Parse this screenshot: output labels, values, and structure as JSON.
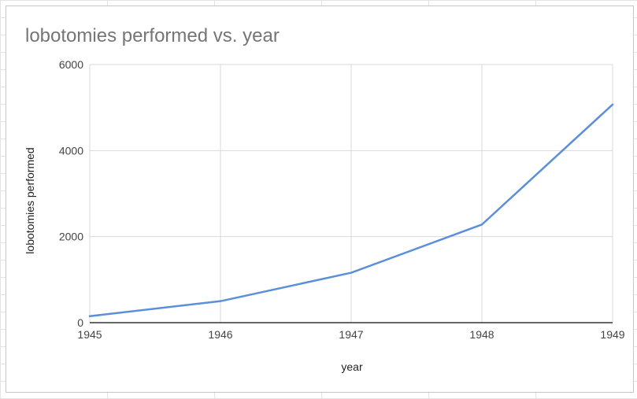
{
  "chart_data": {
    "type": "line",
    "title": "lobotomies performed vs. year",
    "xlabel": "year",
    "ylabel": "lobotomies performed",
    "x": [
      1945,
      1946,
      1947,
      1948,
      1949
    ],
    "x_tick_labels": [
      "1945",
      "1946",
      "1947",
      "1948",
      "1949"
    ],
    "y_ticks": [
      0,
      2000,
      4000,
      6000
    ],
    "y_tick_labels": [
      "0",
      "2000",
      "4000",
      "6000"
    ],
    "ylim": [
      0,
      6000
    ],
    "xlim": [
      1945,
      1949
    ],
    "series": [
      {
        "values": [
          150,
          500,
          1160,
          2280,
          5070
        ],
        "color": "#5b8fd9"
      }
    ],
    "grid": true,
    "legend": "none"
  }
}
